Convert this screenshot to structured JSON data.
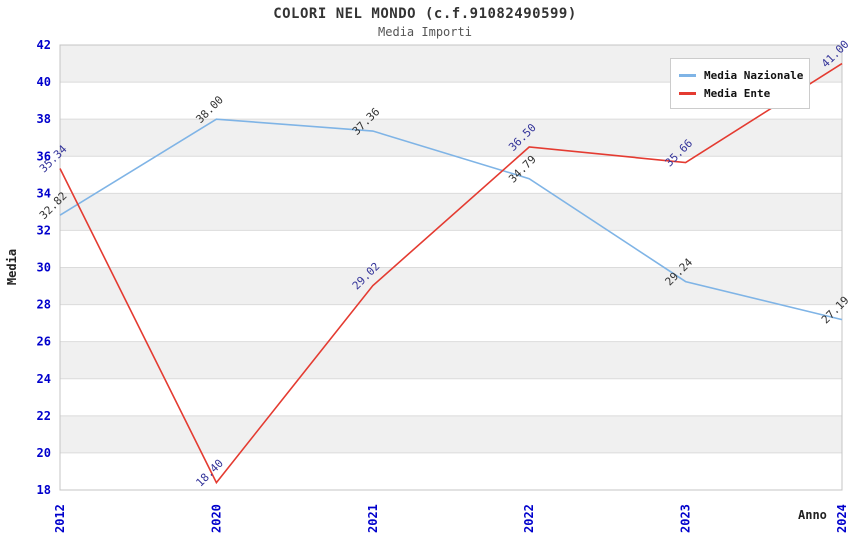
{
  "header": {
    "title": "COLORI NEL MONDO (c.f.91082490599)",
    "subtitle": "Media Importi"
  },
  "legend": {
    "position": "top-right",
    "items": [
      {
        "label": "Media Nazionale",
        "color": "#7FB4E6"
      },
      {
        "label": "Media Ente",
        "color": "#E43B31"
      }
    ]
  },
  "chart_data": {
    "type": "line",
    "title": "COLORI NEL MONDO (c.f.91082490599)",
    "subtitle": "Media Importi",
    "xlabel": "Anno",
    "ylabel": "Media",
    "categories": [
      "2012",
      "2020",
      "2021",
      "2022",
      "2023",
      "2024"
    ],
    "ylim": [
      18,
      42
    ],
    "ytick_step": 2,
    "grid": "alternating-horizontal-bands",
    "legend_position": "top-right",
    "series": [
      {
        "name": "Media Nazionale",
        "color": "#7FB4E6",
        "label_color": "#333333",
        "values": [
          32.82,
          38.0,
          37.36,
          34.79,
          29.24,
          27.19
        ]
      },
      {
        "name": "Media Ente",
        "color": "#E43B31",
        "label_color": "#333399",
        "values": [
          35.34,
          18.4,
          29.02,
          36.5,
          35.66,
          41.0
        ]
      }
    ]
  },
  "style": {
    "band_color": "#F0F0F0",
    "gridline_color": "#DBDBDB",
    "frame_color": "#C4C4C4",
    "tick_label_color": "#0000CC",
    "axis_title_color": "#222222"
  }
}
